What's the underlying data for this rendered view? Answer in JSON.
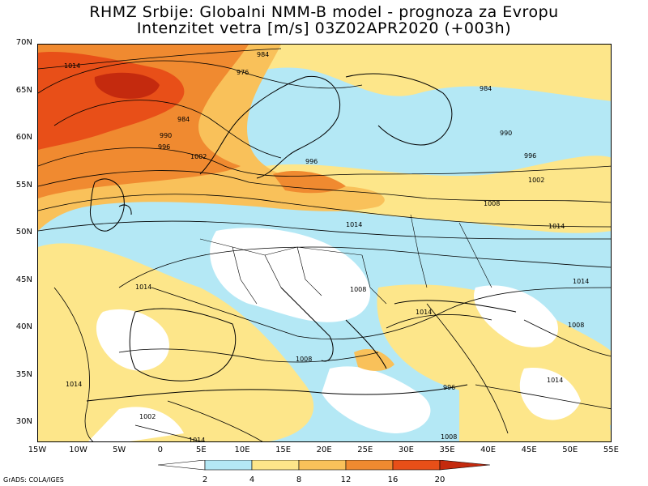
{
  "title": {
    "line1": "RHMZ Srbije: Globalni NMM-B model - prognoza za Evropu",
    "line2": "Intenzitet vetra [m/s] 03Z02APR2020 (+003h)"
  },
  "lat_ticks": [
    "70N",
    "65N",
    "60N",
    "55N",
    "50N",
    "45N",
    "40N",
    "35N",
    "30N"
  ],
  "lon_ticks": [
    "15W",
    "10W",
    "5W",
    "0",
    "5E",
    "10E",
    "15E",
    "20E",
    "25E",
    "30E",
    "35E",
    "40E",
    "45E",
    "50E",
    "55E"
  ],
  "colorbar": {
    "labels": [
      "2",
      "4",
      "8",
      "12",
      "16",
      "20"
    ],
    "colors": [
      "#ffffff",
      "#b4e8f5",
      "#fde68a",
      "#f9c15a",
      "#f08a30",
      "#e84f18",
      "#c42a0e"
    ]
  },
  "isobar_labels": [
    "984",
    "976",
    "984",
    "990",
    "996",
    "1002",
    "990",
    "996",
    "1002",
    "1008",
    "1014",
    "1014",
    "1008",
    "1014",
    "1014",
    "1014",
    "1008",
    "1008",
    "1014",
    "1014",
    "996",
    "1002",
    "1014",
    "1008",
    "1014",
    "996",
    "984"
  ],
  "credit": "GrADS: COLA/IGES"
}
